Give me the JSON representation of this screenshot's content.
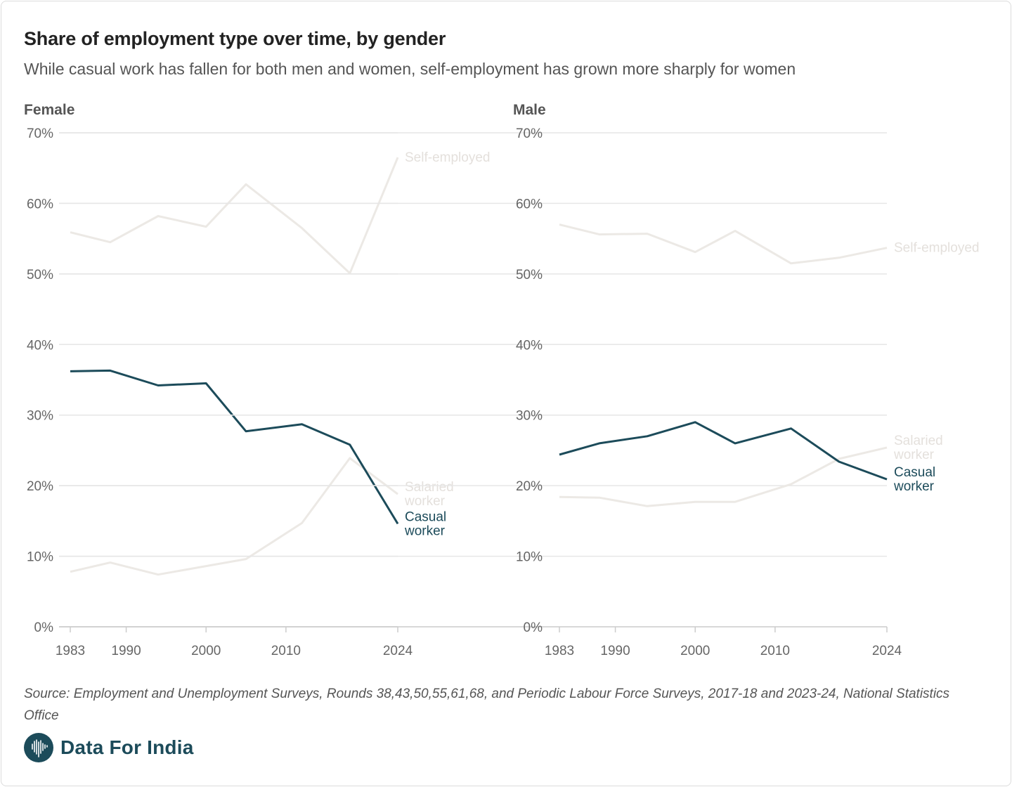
{
  "title": "Share of employment type over time, by gender",
  "subtitle": "While casual work has fallen for both men and women, self-employment has grown more sharply for women",
  "source": "Source: Employment and Unemployment Surveys, Rounds 38,43,50,55,61,68, and Periodic Labour Force Surveys, 2017-18 and 2023-24, National Statistics Office",
  "brand": "Data For India",
  "colors": {
    "casual": "#1c4b5a",
    "muted": "#ece9e5",
    "muted_label": "#e4e0dc",
    "grid": "#e6e6e6",
    "axis": "#cccccc",
    "tick_text": "#666666"
  },
  "chart_data": [
    {
      "type": "line",
      "title": "Female",
      "x": [
        1983,
        1988,
        1994,
        2000,
        2005,
        2012,
        2018,
        2024
      ],
      "xticks": [
        "1983",
        "1990",
        "2000",
        "2010",
        "2024"
      ],
      "xtick_values": [
        1983,
        1990,
        2000,
        2010,
        2024
      ],
      "yticks": [
        "0%",
        "10%",
        "20%",
        "30%",
        "40%",
        "50%",
        "60%",
        "70%"
      ],
      "ylim": [
        0,
        70
      ],
      "grid": true,
      "series": [
        {
          "name": "Self-employed",
          "label_lines": [
            "Self-employed"
          ],
          "emphasis": false,
          "values": [
            55.9,
            54.5,
            58.2,
            56.7,
            62.7,
            56.5,
            50.1,
            66.5
          ]
        },
        {
          "name": "Salaried worker",
          "label_lines": [
            "Salaried",
            "worker"
          ],
          "emphasis": false,
          "values": [
            7.8,
            9.1,
            7.4,
            8.6,
            9.6,
            14.7,
            23.9,
            18.8
          ]
        },
        {
          "name": "Casual worker",
          "label_lines": [
            "Casual",
            "worker"
          ],
          "emphasis": true,
          "values": [
            36.2,
            36.3,
            34.2,
            34.5,
            27.7,
            28.7,
            25.8,
            14.6
          ]
        }
      ]
    },
    {
      "type": "line",
      "title": "Male",
      "x": [
        1983,
        1988,
        1994,
        2000,
        2005,
        2012,
        2018,
        2024
      ],
      "xticks": [
        "1983",
        "1990",
        "2000",
        "2010",
        "2024"
      ],
      "xtick_values": [
        1983,
        1990,
        2000,
        2010,
        2024
      ],
      "yticks": [
        "0%",
        "10%",
        "20%",
        "30%",
        "40%",
        "50%",
        "60%",
        "70%"
      ],
      "ylim": [
        0,
        70
      ],
      "grid": true,
      "series": [
        {
          "name": "Self-employed",
          "label_lines": [
            "Self-employed"
          ],
          "emphasis": false,
          "values": [
            57.0,
            55.6,
            55.7,
            53.1,
            56.1,
            51.5,
            52.3,
            53.7
          ]
        },
        {
          "name": "Salaried worker",
          "label_lines": [
            "Salaried",
            "worker"
          ],
          "emphasis": false,
          "values": [
            18.4,
            18.3,
            17.1,
            17.7,
            17.7,
            20.2,
            23.8,
            25.4
          ]
        },
        {
          "name": "Casual worker",
          "label_lines": [
            "Casual",
            "worker"
          ],
          "emphasis": true,
          "values": [
            24.4,
            26.0,
            27.0,
            29.0,
            26.0,
            28.1,
            23.4,
            20.9
          ]
        }
      ]
    }
  ]
}
